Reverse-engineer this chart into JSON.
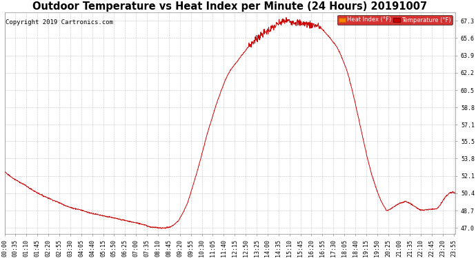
{
  "title": "Outdoor Temperature vs Heat Index per Minute (24 Hours) 20191007",
  "copyright": "Copyright 2019 Cartronics.com",
  "yticks": [
    47.0,
    48.7,
    50.4,
    52.1,
    53.8,
    55.5,
    57.1,
    58.8,
    60.5,
    62.2,
    63.9,
    65.6,
    67.3
  ],
  "ylim": [
    46.4,
    68.1
  ],
  "line_color": "#cc0000",
  "background_color": "#ffffff",
  "grid_color": "#aaaaaa",
  "legend_heat_label": "Heat Index (°F)",
  "legend_temp_label": "Temperature (°F)",
  "title_fontsize": 10.5,
  "copyright_fontsize": 6.5,
  "tick_fontsize": 6.0,
  "xtick_step_min": 35,
  "curve_points": [
    [
      0,
      52.5
    ],
    [
      30,
      51.8
    ],
    [
      60,
      51.3
    ],
    [
      90,
      50.7
    ],
    [
      120,
      50.2
    ],
    [
      150,
      49.8
    ],
    [
      180,
      49.4
    ],
    [
      210,
      49.0
    ],
    [
      240,
      48.8
    ],
    [
      270,
      48.5
    ],
    [
      300,
      48.3
    ],
    [
      330,
      48.1
    ],
    [
      360,
      47.9
    ],
    [
      390,
      47.7
    ],
    [
      420,
      47.5
    ],
    [
      450,
      47.3
    ],
    [
      460,
      47.15
    ],
    [
      470,
      47.08
    ],
    [
      480,
      47.05
    ],
    [
      490,
      47.03
    ],
    [
      500,
      47.0
    ],
    [
      510,
      47.0
    ],
    [
      520,
      47.05
    ],
    [
      530,
      47.1
    ],
    [
      540,
      47.3
    ],
    [
      555,
      47.7
    ],
    [
      570,
      48.5
    ],
    [
      585,
      49.5
    ],
    [
      600,
      51.0
    ],
    [
      615,
      52.5
    ],
    [
      630,
      54.2
    ],
    [
      645,
      56.0
    ],
    [
      660,
      57.5
    ],
    [
      675,
      59.0
    ],
    [
      690,
      60.3
    ],
    [
      705,
      61.5
    ],
    [
      720,
      62.4
    ],
    [
      735,
      63.0
    ],
    [
      750,
      63.6
    ],
    [
      760,
      64.0
    ],
    [
      770,
      64.4
    ],
    [
      780,
      64.8
    ],
    [
      790,
      65.1
    ],
    [
      800,
      65.4
    ],
    [
      810,
      65.7
    ],
    [
      820,
      65.9
    ],
    [
      830,
      66.1
    ],
    [
      840,
      66.3
    ],
    [
      850,
      66.5
    ],
    [
      860,
      66.7
    ],
    [
      870,
      66.9
    ],
    [
      880,
      67.1
    ],
    [
      890,
      67.2
    ],
    [
      895,
      67.25
    ],
    [
      900,
      67.3
    ],
    [
      910,
      67.25
    ],
    [
      920,
      67.2
    ],
    [
      930,
      67.15
    ],
    [
      940,
      67.1
    ],
    [
      950,
      67.05
    ],
    [
      960,
      67.0
    ],
    [
      970,
      66.95
    ],
    [
      980,
      66.9
    ],
    [
      990,
      66.85
    ],
    [
      1000,
      66.8
    ],
    [
      1010,
      66.6
    ],
    [
      1020,
      66.3
    ],
    [
      1030,
      65.9
    ],
    [
      1040,
      65.6
    ],
    [
      1050,
      65.2
    ],
    [
      1060,
      64.8
    ],
    [
      1070,
      64.2
    ],
    [
      1080,
      63.5
    ],
    [
      1090,
      62.7
    ],
    [
      1100,
      61.7
    ],
    [
      1110,
      60.5
    ],
    [
      1120,
      59.2
    ],
    [
      1130,
      57.8
    ],
    [
      1140,
      56.4
    ],
    [
      1150,
      55.0
    ],
    [
      1160,
      53.7
    ],
    [
      1170,
      52.5
    ],
    [
      1180,
      51.5
    ],
    [
      1190,
      50.6
    ],
    [
      1200,
      49.8
    ],
    [
      1210,
      49.2
    ],
    [
      1220,
      48.7
    ],
    [
      1230,
      48.8
    ],
    [
      1240,
      49.0
    ],
    [
      1250,
      49.2
    ],
    [
      1260,
      49.4
    ],
    [
      1270,
      49.5
    ],
    [
      1280,
      49.6
    ],
    [
      1290,
      49.5
    ],
    [
      1300,
      49.3
    ],
    [
      1310,
      49.1
    ],
    [
      1320,
      48.9
    ],
    [
      1330,
      48.75
    ],
    [
      1340,
      48.75
    ],
    [
      1350,
      48.8
    ],
    [
      1360,
      48.85
    ],
    [
      1370,
      48.85
    ],
    [
      1380,
      48.9
    ],
    [
      1390,
      49.2
    ],
    [
      1400,
      49.7
    ],
    [
      1410,
      50.1
    ],
    [
      1420,
      50.4
    ],
    [
      1430,
      50.5
    ],
    [
      1440,
      50.4
    ]
  ]
}
